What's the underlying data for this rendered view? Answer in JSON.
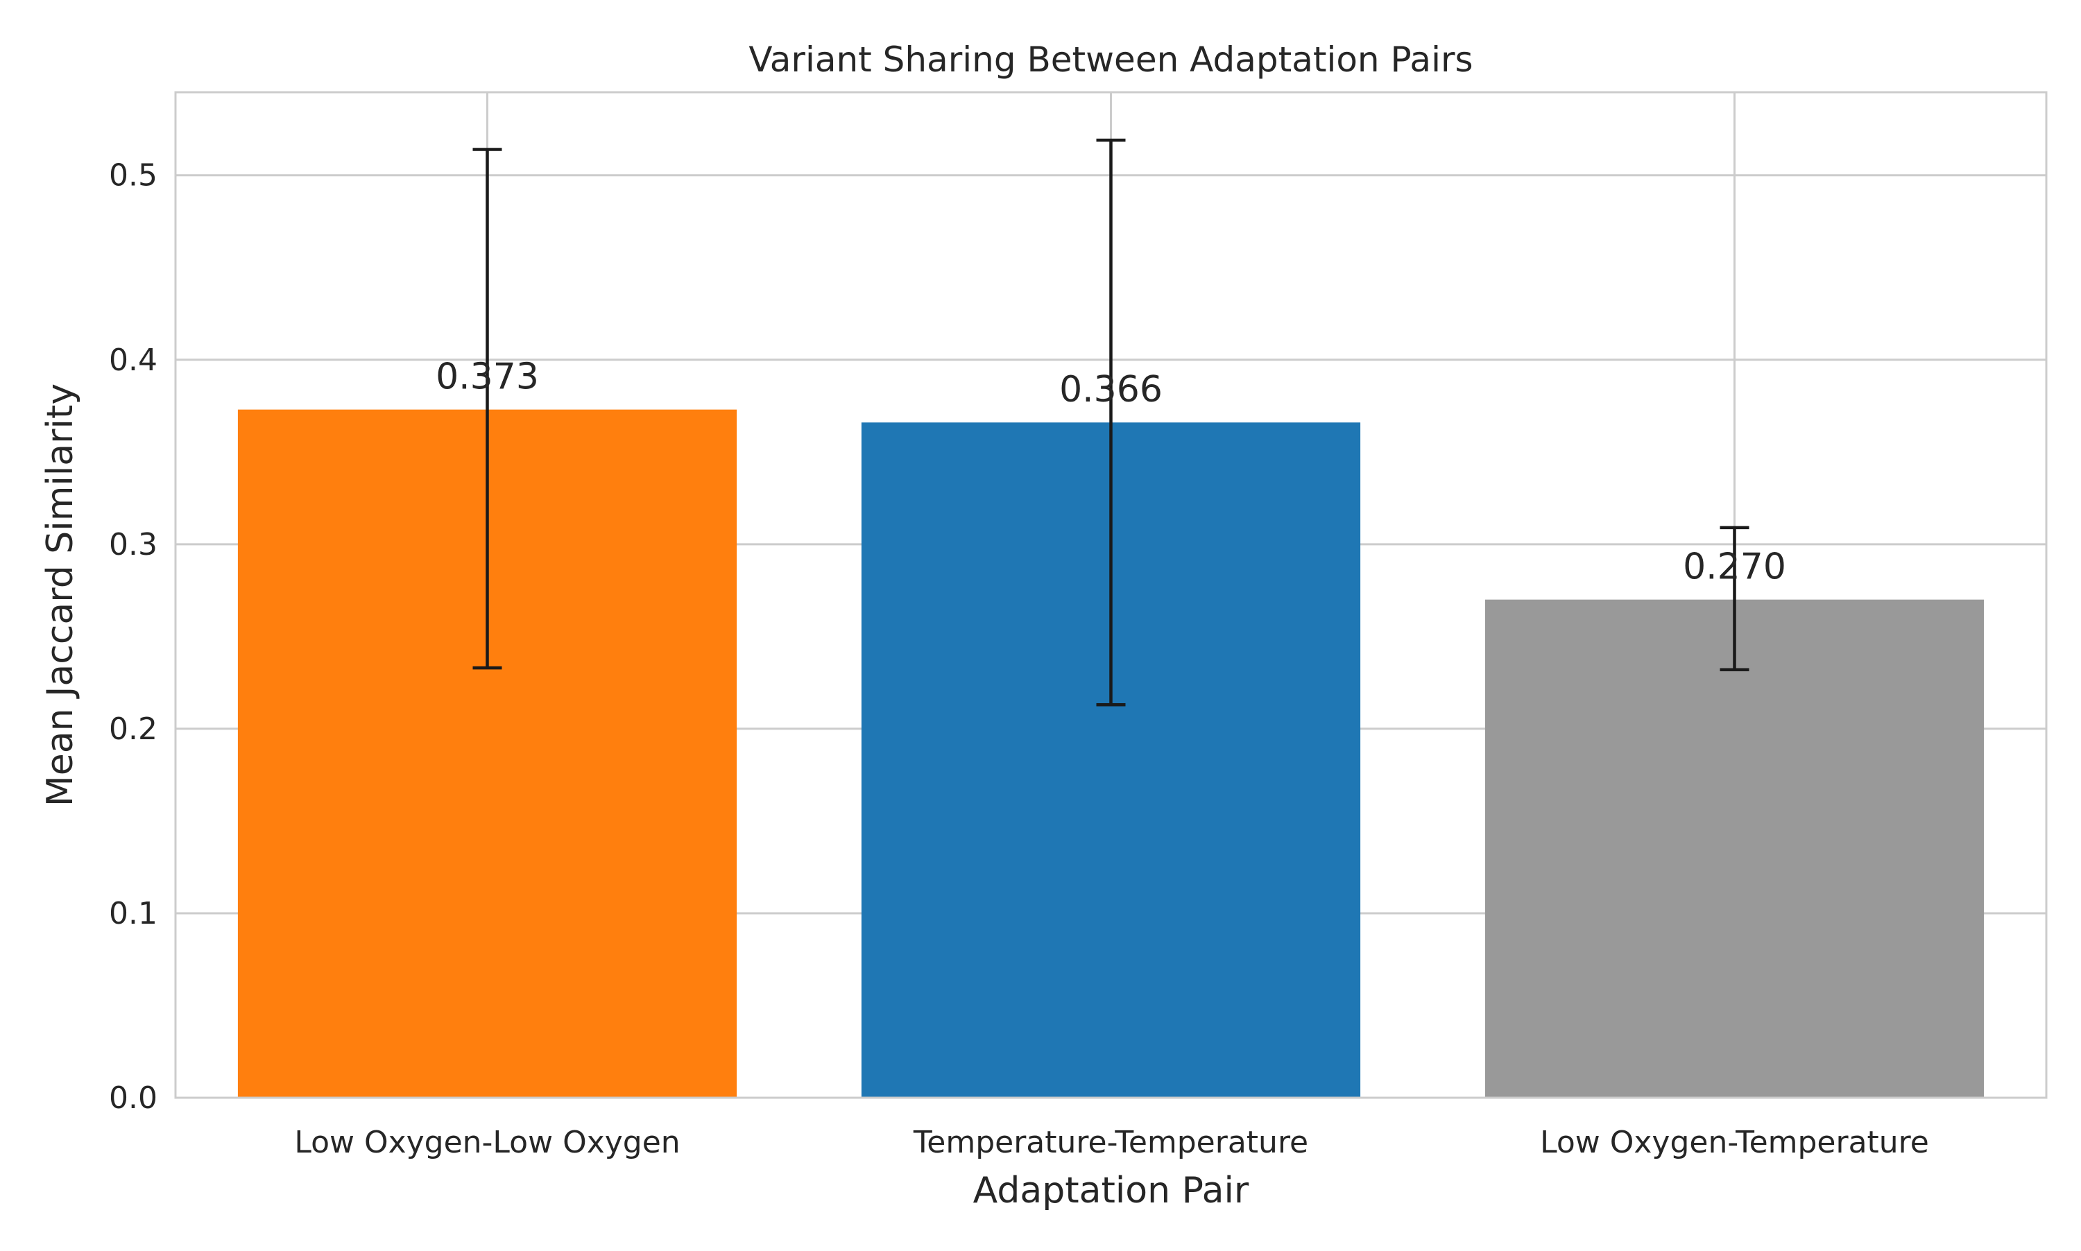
{
  "chart_data": {
    "type": "bar",
    "title": "Variant Sharing Between Adaptation Pairs",
    "xlabel": "Adaptation Pair",
    "ylabel": "Mean Jaccard Similarity",
    "categories": [
      "Low Oxygen-Low Oxygen",
      "Temperature-Temperature",
      "Low Oxygen-Temperature"
    ],
    "values": [
      0.373,
      0.366,
      0.27
    ],
    "value_labels": [
      "0.373",
      "0.366",
      "0.270"
    ],
    "error_bars": [
      {
        "low": 0.233,
        "high": 0.514
      },
      {
        "low": 0.213,
        "high": 0.519
      },
      {
        "low": 0.232,
        "high": 0.309
      }
    ],
    "colors": [
      "#ff7f0e",
      "#1f77b4",
      "#999999"
    ],
    "ylim": [
      0,
      0.545
    ],
    "yticks": [
      0.0,
      0.1,
      0.2,
      0.3,
      0.4,
      0.5
    ],
    "ytick_labels": [
      "0.0",
      "0.1",
      "0.2",
      "0.3",
      "0.4",
      "0.5"
    ],
    "grid": true,
    "legend": false
  }
}
